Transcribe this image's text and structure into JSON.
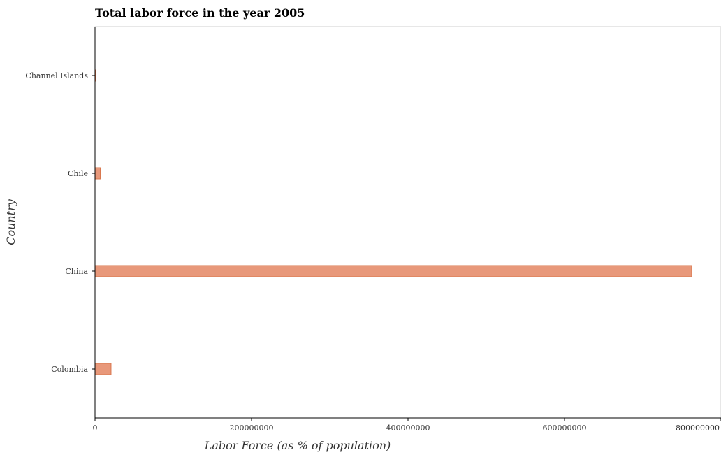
{
  "chart_data": {
    "type": "bar",
    "orientation": "horizontal",
    "title": "Total labor force in the year 2005",
    "xlabel": "Labor Force (as % of population)",
    "ylabel": "Country",
    "categories": [
      "Channel Islands",
      "Chile",
      "China",
      "Colombia"
    ],
    "values": [
      70000,
      6700000,
      762500000,
      20500000
    ],
    "xlim": [
      0,
      800000000
    ],
    "xticks": [
      0,
      200000000,
      400000000,
      600000000,
      800000000
    ],
    "xtick_labels": [
      "0",
      "200000000",
      "400000000",
      "600000000",
      "800000000"
    ],
    "bar_color": "#e8987a",
    "bar_edge_color": "#d9784f",
    "grid": false
  }
}
